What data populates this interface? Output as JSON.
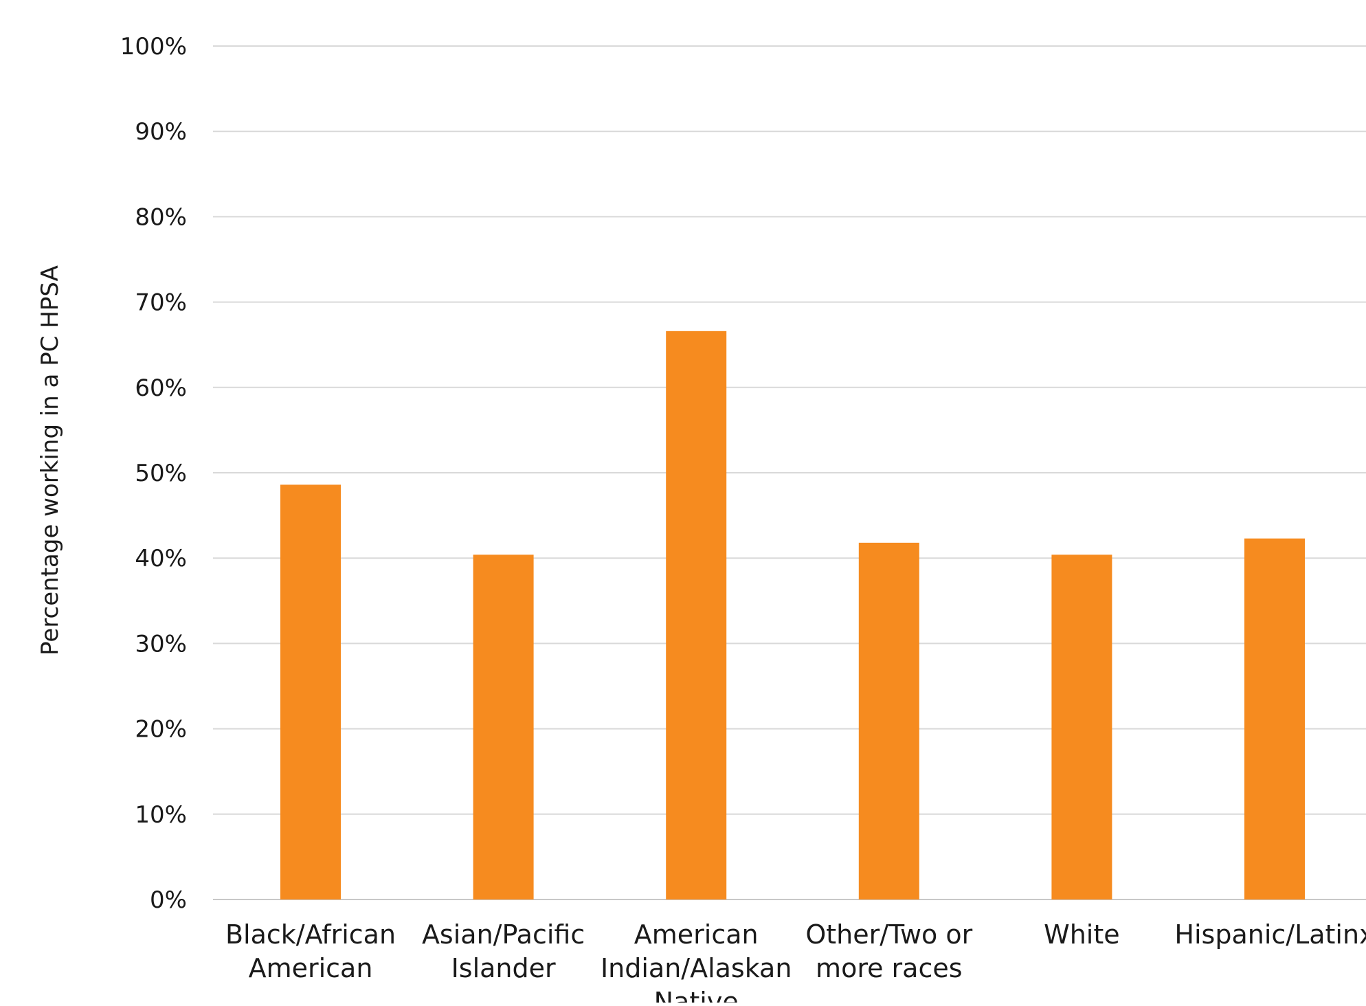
{
  "chart_data": {
    "type": "bar",
    "categories": [
      [
        "Black/African",
        "American"
      ],
      [
        "Asian/Pacific",
        "Islander"
      ],
      [
        "American",
        "Indian/Alaskan",
        "Native"
      ],
      [
        "Other/Two or",
        "more races"
      ],
      [
        "White"
      ],
      [
        "Hispanic/Latinx"
      ]
    ],
    "values": [
      48.6,
      40.4,
      66.6,
      41.8,
      40.4,
      42.3
    ],
    "ylabel": "Percentage working in a PC HPSA",
    "xlabel": "",
    "ylim": [
      0,
      100
    ],
    "ytick_step": 10,
    "ytick_suffix": "%",
    "grid": true,
    "bar_color": "#f68b1f",
    "grid_color": "#d9d9d9"
  }
}
